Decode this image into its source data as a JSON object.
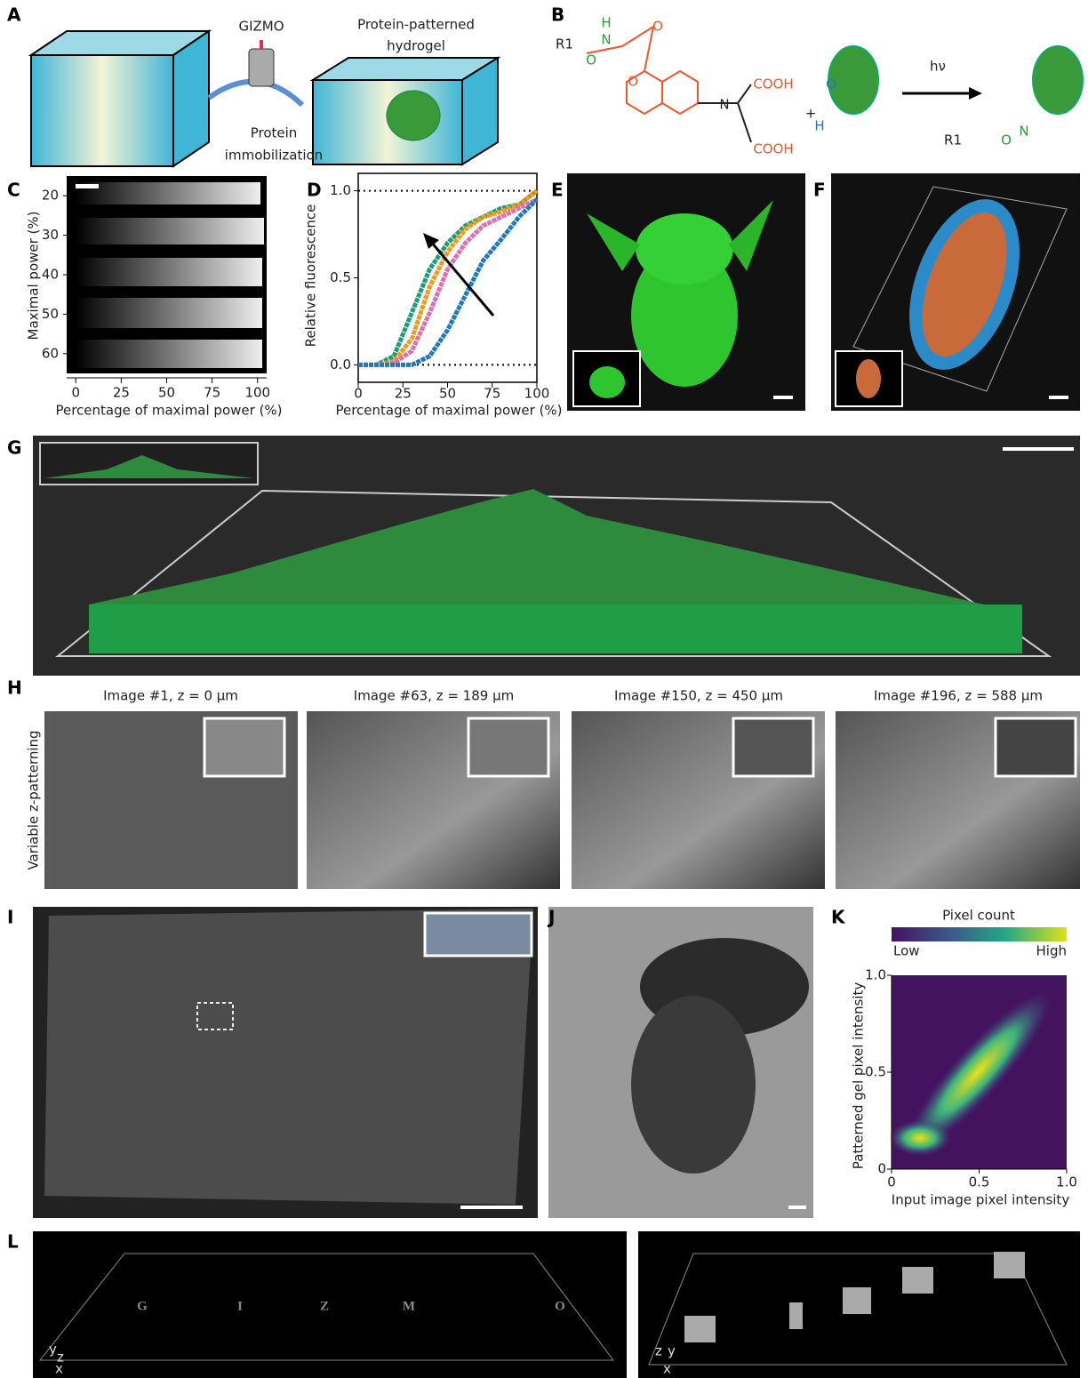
{
  "panel_labels": [
    "A",
    "B",
    "C",
    "D",
    "E",
    "F",
    "G",
    "H",
    "I",
    "J",
    "K",
    "L"
  ],
  "figure": {
    "A": {
      "tool": "GIZMO",
      "product_line1": "Protein-patterned",
      "product_line2": "hydrogel",
      "process_line1": "Protein",
      "process_line2": "immobilization"
    },
    "B": {
      "r1": "R1",
      "nh": "H",
      "n1": "N",
      "o1": "O",
      "o2": "O",
      "o3": "O",
      "n2": "N",
      "cooh1": "COOH",
      "cooh2": "COOH",
      "plus": "+",
      "h": "H",
      "o4": "O",
      "hv": "hν",
      "r1b": "R1",
      "o5": "O",
      "n3": "N"
    },
    "C": {
      "ylabel": "Maximal power (%)",
      "xlabel": "Percentage of maximal power (%)",
      "yticks": [
        20,
        30,
        40,
        50,
        60
      ],
      "ylim": [
        15,
        65
      ],
      "xticks": [
        0,
        25,
        50,
        75,
        100
      ],
      "xlim": [
        -5,
        105
      ]
    },
    "H": {
      "side_label": "Variable z-patterning",
      "titles": [
        "Image #1, z = 0 µm",
        "Image #63, z = 189 µm",
        "Image #150, z = 450 µm",
        "Image #196, z = 588 µm"
      ]
    },
    "L": {
      "letters": [
        "G",
        "I",
        "Z",
        "M",
        "O"
      ],
      "axes1": [
        "y",
        "z",
        "x"
      ],
      "axes2": [
        "z",
        "y",
        "x"
      ]
    }
  },
  "chart_data": [
    {
      "type": "line",
      "xlabel": "Percentage of maximal power (%)",
      "ylabel": "Relative fluorescence",
      "x": [
        0,
        10,
        20,
        30,
        40,
        50,
        60,
        70,
        80,
        90,
        100
      ],
      "series": [
        {
          "color": "#1a9e77",
          "values": [
            0,
            0,
            0.05,
            0.3,
            0.55,
            0.7,
            0.8,
            0.85,
            0.9,
            0.92,
            1.0
          ]
        },
        {
          "color": "#f29a1b",
          "values": [
            0,
            0,
            0.02,
            0.15,
            0.45,
            0.65,
            0.78,
            0.85,
            0.88,
            0.92,
            1.0
          ]
        },
        {
          "color": "#e06fb0",
          "values": [
            0,
            0,
            0.01,
            0.08,
            0.3,
            0.55,
            0.7,
            0.8,
            0.85,
            0.9,
            0.95
          ]
        },
        {
          "color": "#1f78c1",
          "values": [
            0,
            0,
            0,
            0,
            0.05,
            0.2,
            0.4,
            0.6,
            0.72,
            0.85,
            0.95
          ]
        }
      ],
      "xlim": [
        0,
        100
      ],
      "ylim": [
        -0.1,
        1.1
      ],
      "xticks": [
        0,
        25,
        50,
        75,
        100
      ],
      "yticks": [
        {
          "value": 0,
          "label": "0.0"
        },
        {
          "value": 0.5,
          "label": "0.5"
        },
        {
          "value": 1,
          "label": "1.0"
        }
      ],
      "reference_lines": [
        0,
        1
      ]
    },
    {
      "type": "heatmap",
      "colorbar_title": "Pixel count",
      "colorbar_low": "Low",
      "colorbar_high": "High",
      "xlabel": "Input image pixel intensity",
      "ylabel": "Patterned gel pixel intensity",
      "xlim": [
        0,
        1
      ],
      "ylim": [
        0,
        1
      ],
      "xticks": [
        0,
        0.5,
        {
          "value": 1,
          "label": "1.0"
        }
      ],
      "yticks": [
        0,
        0.5,
        {
          "value": 1,
          "label": "1.0"
        }
      ]
    }
  ]
}
